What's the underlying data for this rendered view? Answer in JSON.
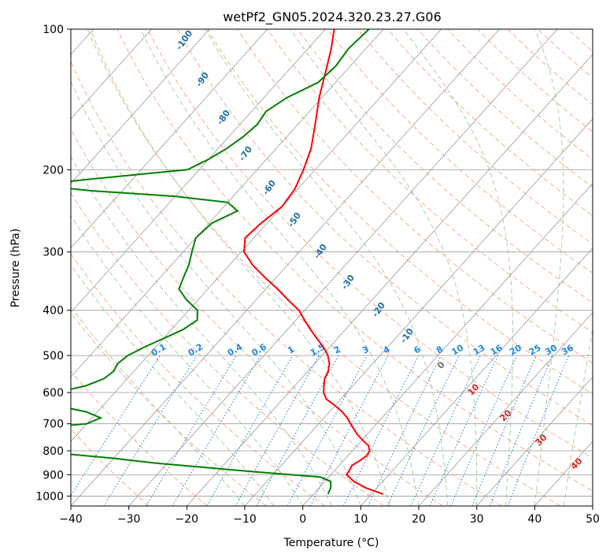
{
  "chart_data": {
    "type": "line",
    "title": "wetPf2_GN05.2024.320.23.27.G06",
    "xlabel": "Temperature (°C)",
    "ylabel": "Pressure (hPa)",
    "xlim": [
      -40,
      50
    ],
    "ylim": [
      1050,
      100
    ],
    "y_scale": "log",
    "skew": true,
    "grid": true,
    "x_ticks": [
      -40,
      -30,
      -20,
      -10,
      0,
      10,
      20,
      30,
      40,
      50
    ],
    "y_ticks": [
      100,
      200,
      300,
      400,
      500,
      600,
      700,
      800,
      900,
      1000
    ],
    "series": [
      {
        "color": "#ff0000",
        "x_pressure": [
          990,
          960,
          930,
          900,
          880,
          860,
          840,
          820,
          800,
          780,
          760,
          740,
          720,
          700,
          680,
          660,
          640,
          620,
          600,
          580,
          560,
          540,
          520,
          500,
          480,
          460,
          440,
          420,
          400,
          380,
          360,
          340,
          320,
          300,
          280,
          260,
          240,
          220,
          200,
          180,
          160,
          140,
          120,
          110,
          100
        ],
        "temperature": [
          12,
          8,
          5,
          2.7,
          2.5,
          2.2,
          2.8,
          3.2,
          3.0,
          2.0,
          0.2,
          -1.5,
          -3.0,
          -4.5,
          -6.0,
          -7.8,
          -10.0,
          -12.5,
          -14.0,
          -15.0,
          -16.0,
          -16.5,
          -17.5,
          -19.0,
          -21.0,
          -23.5,
          -26.0,
          -28.5,
          -31.0,
          -34.5,
          -38.0,
          -42.0,
          -46.0,
          -49.5,
          -51.5,
          -51.0,
          -50.0,
          -50.5,
          -52.0,
          -54.0,
          -57.0,
          -60.5,
          -64.0,
          -66.0,
          -68.5
        ]
      },
      {
        "color": "#008000",
        "x_pressure": [
          990,
          960,
          930,
          910,
          900,
          890,
          880,
          870,
          860,
          850,
          840,
          830,
          820,
          810,
          800,
          790,
          780,
          770,
          760,
          750,
          740,
          730,
          720,
          710,
          700,
          680,
          660,
          640,
          620,
          600,
          580,
          560,
          540,
          520,
          500,
          480,
          460,
          440,
          420,
          400,
          380,
          360,
          340,
          320,
          300,
          280,
          260,
          245,
          235,
          228,
          222,
          218,
          215,
          210,
          200,
          190,
          180,
          170,
          160,
          150,
          140,
          130,
          120,
          110,
          100
        ],
        "dewpoint": [
          2.5,
          2.0,
          1.0,
          -1.5,
          -7.0,
          -12.0,
          -17.0,
          -22.0,
          -27.0,
          -32.0,
          -36.0,
          -40.0,
          -45.0,
          -50.0,
          -55.0,
          -60.0,
          -60.0,
          -57.0,
          -62.0,
          -65.0,
          -70.0,
          -68.0,
          -64.0,
          -55.0,
          -50.0,
          -48.5,
          -52.0,
          -58.0,
          -60.0,
          -60.0,
          -56.0,
          -54.0,
          -53.5,
          -54.0,
          -53.5,
          -52.0,
          -50.0,
          -48.0,
          -47.0,
          -48.5,
          -52.0,
          -55.0,
          -56.0,
          -57.0,
          -58.5,
          -60.0,
          -59.5,
          -57.0,
          -60.0,
          -70.0,
          -85.0,
          -92.0,
          -95.0,
          -88.0,
          -72.0,
          -70.0,
          -68.5,
          -67.5,
          -67.0,
          -67.5,
          -66.0,
          -63.0,
          -62.5,
          -63.0,
          -62.5
        ]
      }
    ],
    "dry_adiabat_labels": [
      "-100",
      "-90",
      "-80",
      "-70",
      "-60",
      "-50",
      "-40",
      "-30",
      "-20",
      "-10"
    ],
    "mixing_ratio_labels": [
      "0.1",
      "0.2",
      "0.4",
      "0.6",
      "1",
      "1.5",
      "2",
      "3",
      "4",
      "6",
      "8",
      "10",
      "13",
      "16",
      "20",
      "25",
      "30",
      "36"
    ],
    "moist_adiabat_labels": [
      "0",
      "10",
      "20",
      "30",
      "40"
    ],
    "colors": {
      "temperature": "#ff0000",
      "dewpoint": "#008000",
      "isotherm": "#9a9a9a",
      "dry_adiabat": "#f4a582",
      "moist_adiabat": "#9ccc9c",
      "mixing_ratio": "#1f78d0",
      "dry_label": "#1f6fa8",
      "mixing_label": "#1e88e5",
      "moist_label": "#d62728",
      "zero_label": "#707070"
    }
  }
}
